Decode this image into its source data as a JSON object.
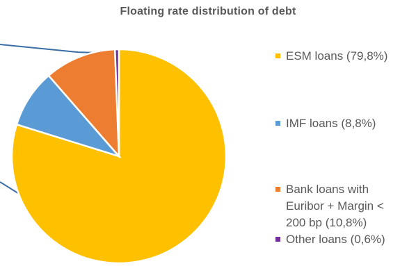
{
  "chart_data": {
    "type": "pie",
    "title": "Floating rate distribution of debt",
    "slices": [
      {
        "label": "ESM loans (79,8%)",
        "value": 79.8,
        "color": "#FFC000"
      },
      {
        "label": "IMF loans (8,8%)",
        "value": 8.8,
        "color": "#5B9BD5"
      },
      {
        "label": "Bank loans with Euribor + Margin < 200 bp (10,8%)",
        "value": 10.8,
        "color": "#ED7D31"
      },
      {
        "label": "Other loans (0,6%)",
        "value": 0.6,
        "color": "#7030A0"
      }
    ],
    "legend_position": "right",
    "start_angle": "12 o'clock",
    "direction": "clockwise from ESM loans, other slices counter-clockwise"
  }
}
